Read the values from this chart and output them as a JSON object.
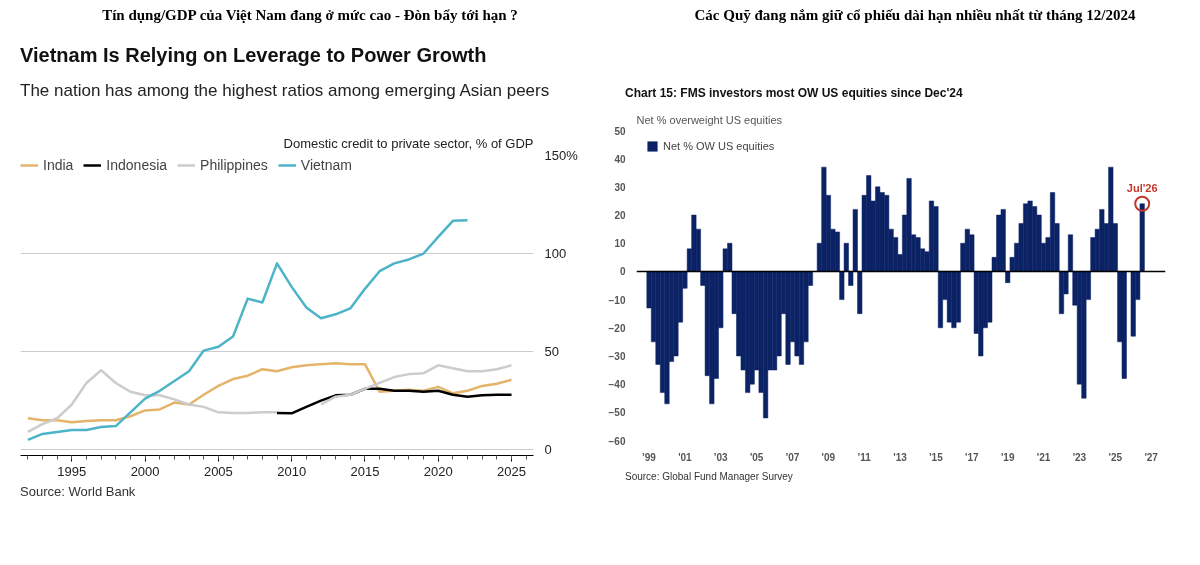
{
  "chart_data": [
    {
      "type": "line",
      "title": "Tín dụng/GDP của Việt Nam đang ở mức cao - Đòn bẩy tới hạn ?",
      "subtitle": "Vietnam Is Relying on Leverage to Power Growth",
      "ylabel": "Domestic credit to private sector, % of GDP",
      "annotations": [
        "The nation has among the highest ratios among emerging Asian peers",
        "Source: World Bank"
      ],
      "x": [
        1992,
        1993,
        1994,
        1995,
        1996,
        1997,
        1998,
        1999,
        2000,
        2001,
        2002,
        2003,
        2004,
        2005,
        2006,
        2007,
        2008,
        2009,
        2010,
        2011,
        2012,
        2013,
        2014,
        2015,
        2016,
        2017,
        2018,
        2019,
        2020,
        2021,
        2022,
        2023,
        2024,
        2025
      ],
      "series": [
        {
          "name": "India",
          "color": "#e3b46a",
          "values": [
            16,
            15,
            15,
            14,
            14.6,
            15,
            15,
            17,
            20,
            20.5,
            24,
            23,
            28,
            32.5,
            36,
            37.7,
            41,
            40,
            42,
            43,
            43.6,
            44,
            43.6,
            43.6,
            29.5,
            30,
            30.5,
            30,
            32,
            28.7,
            30,
            32.5,
            33.6,
            35.6
          ]
        },
        {
          "name": "Indonesia",
          "color": "#000000",
          "values": [
            null,
            null,
            null,
            null,
            null,
            null,
            null,
            null,
            null,
            null,
            null,
            null,
            null,
            null,
            null,
            null,
            null,
            18.7,
            18.5,
            21.8,
            25,
            27.7,
            28,
            31,
            31,
            30,
            30,
            29.5,
            30,
            28,
            27,
            27.7,
            28,
            28
          ]
        },
        {
          "name": "Philippines",
          "color": "#cccccc",
          "values": [
            9,
            13,
            16,
            23,
            34,
            40.5,
            34,
            29.5,
            27.7,
            27.7,
            25.6,
            23,
            21.8,
            19,
            18.7,
            18.7,
            19,
            19,
            null,
            null,
            23,
            27,
            28,
            31,
            34,
            37,
            38.5,
            39,
            43,
            41.5,
            40,
            40,
            41,
            43
          ]
        },
        {
          "name": "Vietnam",
          "color": "#4db3c8",
          "values": [
            5,
            8,
            9,
            10,
            10,
            11.5,
            12,
            19,
            26,
            30,
            35,
            40,
            50.5,
            52.5,
            57.7,
            77,
            75,
            95,
            83,
            72.5,
            67,
            69,
            72,
            82,
            91,
            95,
            97,
            100,
            108.5,
            116.7,
            117,
            null,
            null,
            null
          ]
        }
      ],
      "xlim": [
        1991.5,
        2026.5
      ],
      "ylim": [
        -3,
        150
      ],
      "xticks": [
        1995,
        2000,
        2005,
        2010,
        2015,
        2020,
        2025
      ],
      "yticks": [
        0,
        50,
        100,
        {
          "value": 150,
          "label": "150%"
        }
      ],
      "grid": "y",
      "legend": "top",
      "line_style": "solid",
      "marker": "none"
    },
    {
      "type": "bar",
      "title": "Các Quỹ đang nắm giữ cổ phiếu dài hạn nhiều nhất từ tháng 12/2024",
      "subtitle": "Chart 15: FMS investors most OW US equities since Dec'24",
      "ylabel": "Net % overweight US equities",
      "annotations": [
        "Source: Global Fund Manager Survey",
        {
          "text": "Jul'26",
          "x": 2026.5,
          "y": 24
        }
      ],
      "x": [
        1999,
        1999.25,
        1999.5,
        1999.75,
        2000,
        2000.25,
        2000.5,
        2000.75,
        2001,
        2001.25,
        2001.5,
        2001.75,
        2002,
        2002.25,
        2002.5,
        2002.75,
        2003,
        2003.25,
        2003.5,
        2003.75,
        2004,
        2004.25,
        2004.5,
        2004.75,
        2005,
        2005.25,
        2005.5,
        2005.75,
        2006,
        2006.25,
        2006.5,
        2006.75,
        2007,
        2007.25,
        2007.5,
        2007.75,
        2008,
        2008.25,
        2008.5,
        2008.75,
        2009,
        2009.25,
        2009.5,
        2009.75,
        2010,
        2010.25,
        2010.5,
        2010.75,
        2011,
        2011.25,
        2011.5,
        2011.75,
        2012,
        2012.25,
        2012.5,
        2012.75,
        2013,
        2013.25,
        2013.5,
        2013.75,
        2014,
        2014.25,
        2014.5,
        2014.75,
        2015,
        2015.25,
        2015.5,
        2015.75,
        2016,
        2016.25,
        2016.5,
        2016.75,
        2017,
        2017.25,
        2017.5,
        2017.75,
        2018,
        2018.25,
        2018.5,
        2018.75,
        2019,
        2019.25,
        2019.5,
        2019.75,
        2020,
        2020.25,
        2020.5,
        2020.75,
        2021,
        2021.25,
        2021.5,
        2021.75,
        2022,
        2022.25,
        2022.5,
        2022.75,
        2023,
        2023.25,
        2023.5,
        2023.75,
        2024,
        2024.25,
        2024.5,
        2024.75,
        2025,
        2025.25,
        2025.5,
        2025.75,
        2026,
        2026.25,
        2026.5
      ],
      "series": [
        {
          "name": "Net % OW US equities",
          "color": "#0b2265",
          "values": [
            -13,
            -25,
            -33,
            -43,
            -47,
            -32,
            -30,
            -18,
            -6,
            8,
            20,
            15,
            -5,
            -37,
            -47,
            -38,
            -20,
            8,
            10,
            -15,
            -30,
            -35,
            -43,
            -40,
            -35,
            -43,
            -52,
            -35,
            -35,
            -30,
            -15,
            -33,
            -25,
            -30,
            -33,
            -25,
            -5,
            0,
            10,
            37,
            27,
            15,
            14,
            -10,
            10,
            -5,
            22,
            -15,
            27,
            34,
            25,
            30,
            28,
            27,
            15,
            12,
            6,
            20,
            33,
            13,
            12,
            8,
            7,
            25,
            23,
            -20,
            -10,
            -18,
            -20,
            -18,
            10,
            15,
            13,
            -22,
            -30,
            -20,
            -18,
            5,
            20,
            22,
            -4,
            5,
            10,
            17,
            24,
            25,
            23,
            20,
            10,
            12,
            28,
            17,
            -15,
            -8,
            13,
            -12,
            -40,
            -45,
            -10,
            12,
            15,
            22,
            17,
            37,
            17,
            -25,
            -38,
            0,
            -23,
            -10,
            24
          ]
        }
      ],
      "xlim": [
        1998.3,
        2027.8
      ],
      "ylim": [
        -60,
        50
      ],
      "xticks": [
        {
          "value": 1999,
          "label": "'99"
        },
        {
          "value": 2001,
          "label": "'01"
        },
        {
          "value": 2003,
          "label": "'03"
        },
        {
          "value": 2005,
          "label": "'05"
        },
        {
          "value": 2007,
          "label": "'07"
        },
        {
          "value": 2009,
          "label": "'09"
        },
        {
          "value": 2011,
          "label": "'11"
        },
        {
          "value": 2013,
          "label": "'13"
        },
        {
          "value": 2015,
          "label": "'15"
        },
        {
          "value": 2017,
          "label": "'17"
        },
        {
          "value": 2019,
          "label": "'19"
        },
        {
          "value": 2021,
          "label": "'21"
        },
        {
          "value": 2023,
          "label": "'23"
        },
        {
          "value": 2025,
          "label": "'25"
        },
        {
          "value": 2027,
          "label": "'27"
        }
      ],
      "yticks": [
        -60,
        -50,
        -40,
        -30,
        -20,
        -10,
        0,
        10,
        20,
        30,
        40,
        50
      ],
      "grid": false,
      "legend": "top left",
      "ref_lines": [
        {
          "axis": "y",
          "value": 0,
          "color": "#000000"
        }
      ]
    }
  ]
}
